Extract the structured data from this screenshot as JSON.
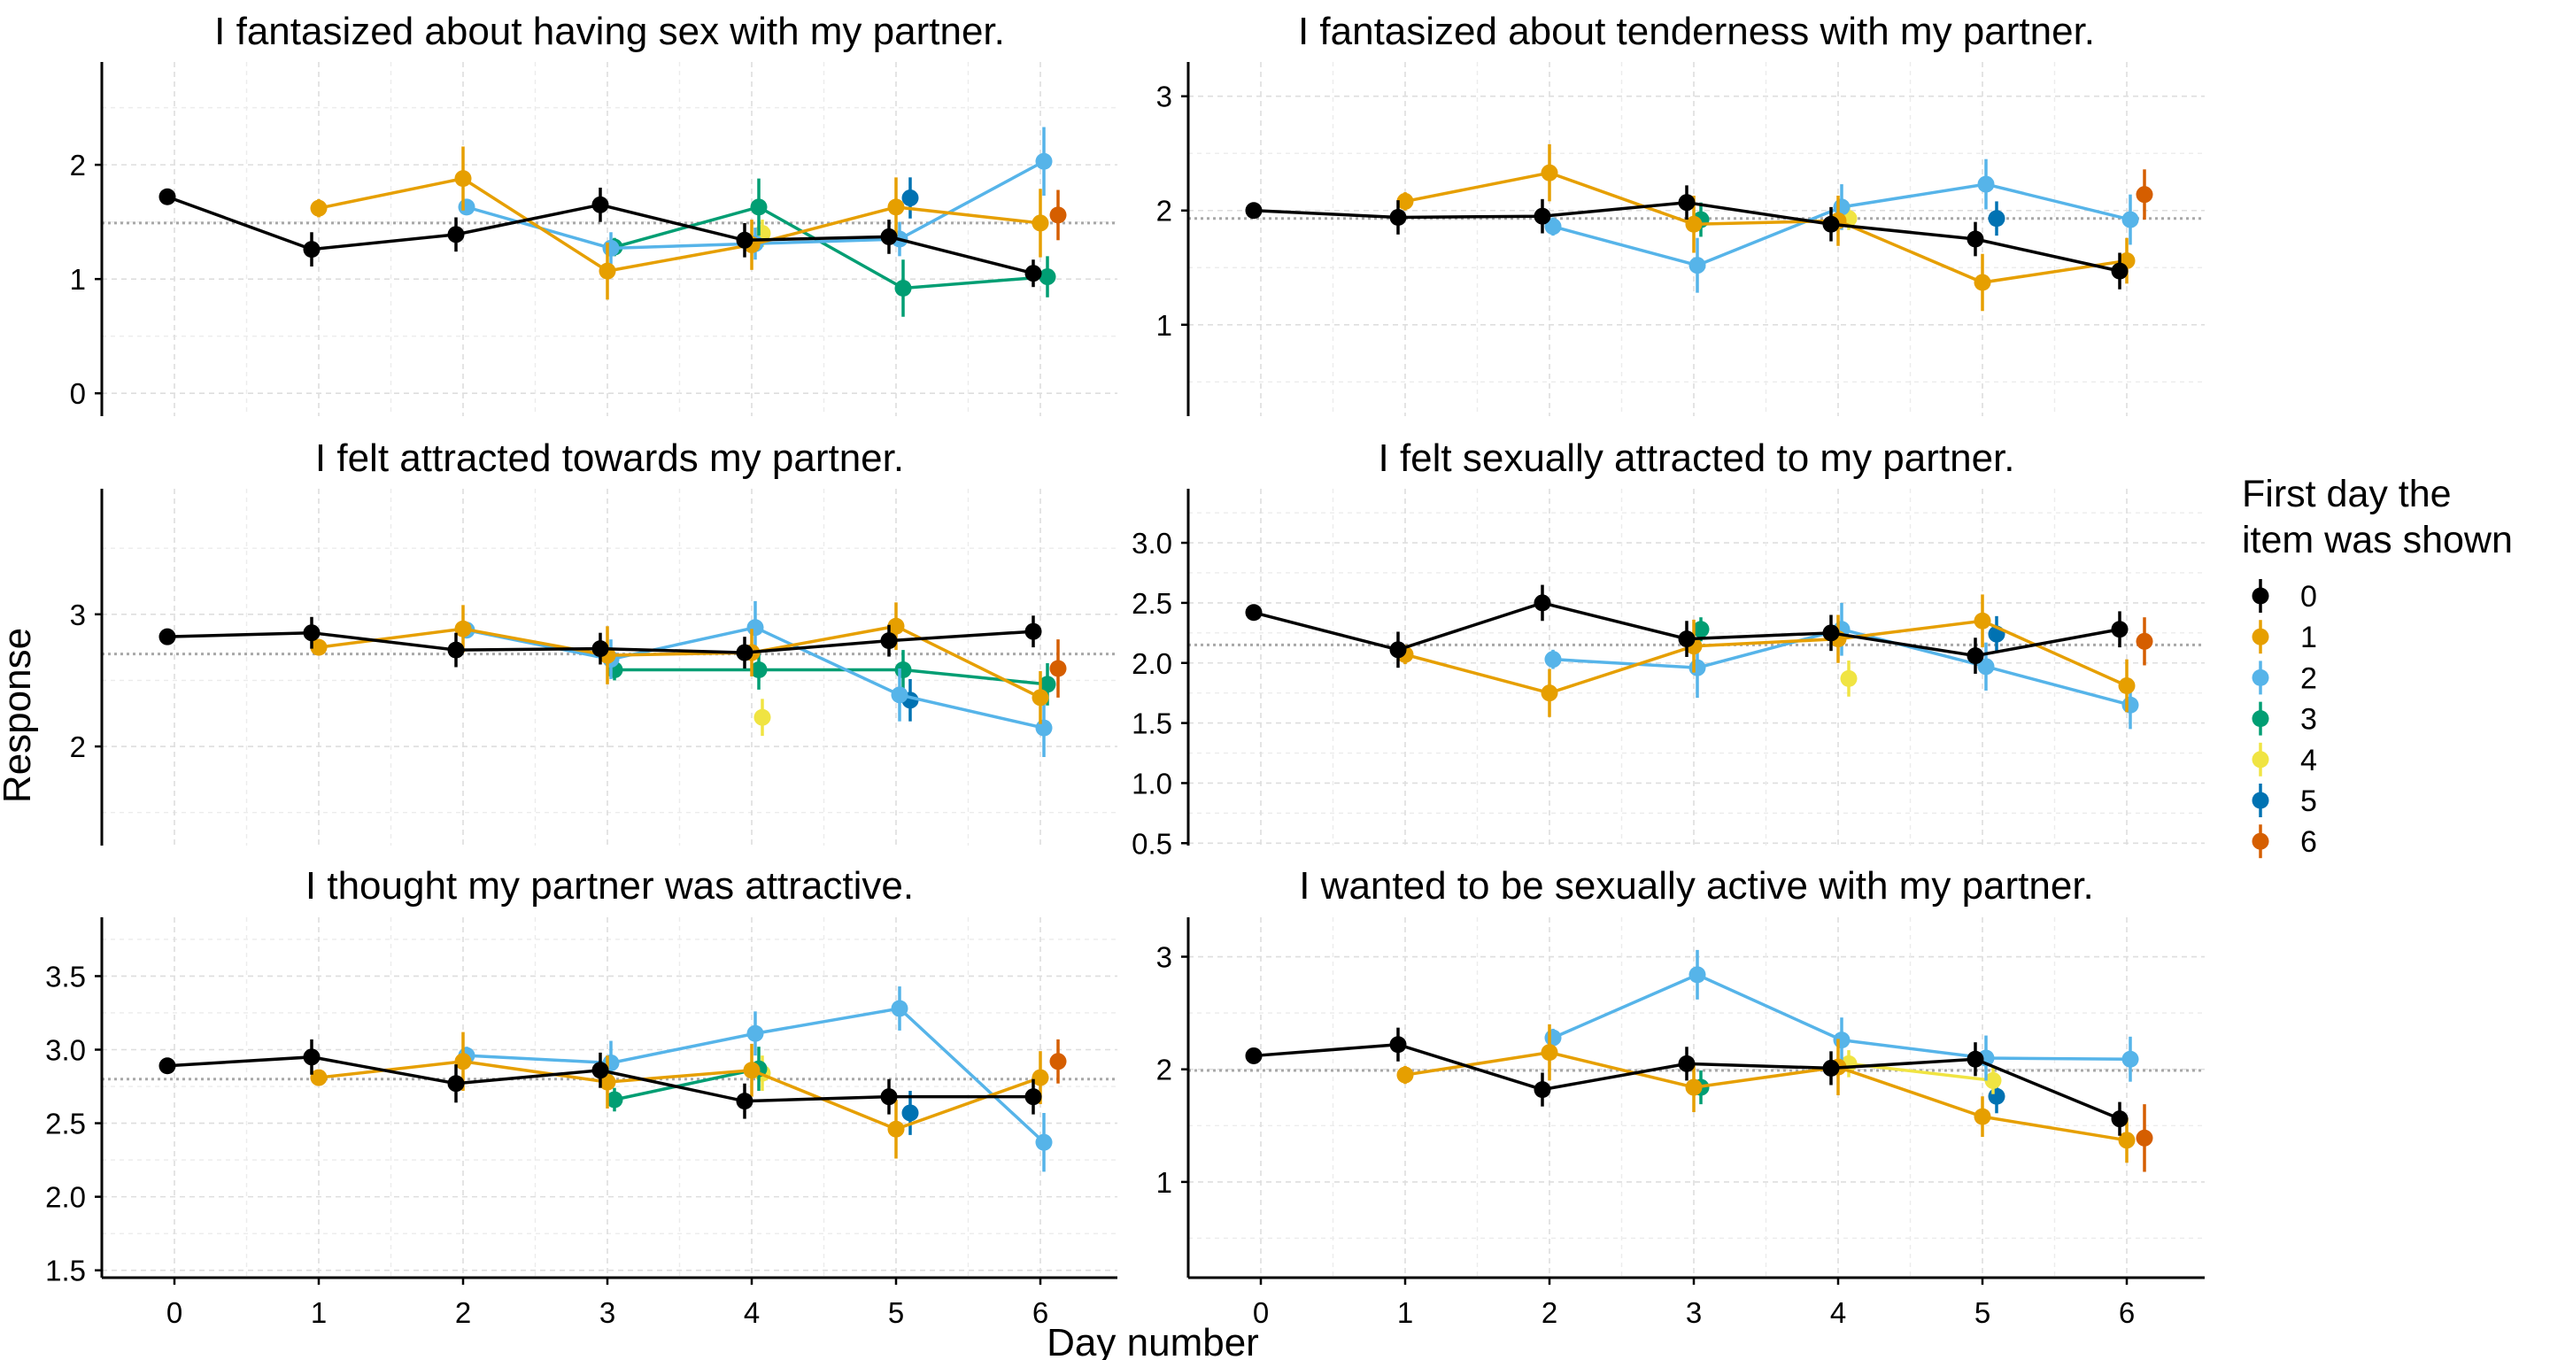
{
  "xlabel": "Day number",
  "ylabel": "Response",
  "legend": {
    "title_line1": "First day the",
    "title_line2": "item was shown",
    "placement": "right",
    "entries": [
      {
        "label": "0",
        "color": "#000000"
      },
      {
        "label": "1",
        "color": "#E69F00"
      },
      {
        "label": "2",
        "color": "#56B4E9"
      },
      {
        "label": "3",
        "color": "#009E73"
      },
      {
        "label": "4",
        "color": "#F0E442"
      },
      {
        "label": "5",
        "color": "#0072B2"
      },
      {
        "label": "6",
        "color": "#D55E00"
      }
    ]
  },
  "x_ticks": [
    0,
    1,
    2,
    3,
    4,
    5,
    6
  ],
  "chart_data": [
    {
      "type": "line",
      "title": "I fantasized about having sex with my partner.",
      "ylim": [
        -0.2,
        2.9
      ],
      "yticks": [
        0,
        1,
        2
      ],
      "yticks_minor": [
        0.5,
        1.5,
        2.5
      ],
      "reference_line": 1.49,
      "series": [
        {
          "name": "0",
          "x": [
            0,
            1,
            2,
            3,
            4,
            5,
            6
          ],
          "y": [
            1.72,
            1.26,
            1.39,
            1.65,
            1.34,
            1.37,
            1.05
          ],
          "err": [
            0.02,
            0.15,
            0.15,
            0.15,
            0.15,
            0.15,
            0.12
          ]
        },
        {
          "name": "1",
          "x": [
            1,
            2,
            3,
            4,
            5,
            6
          ],
          "y": [
            1.62,
            1.88,
            1.07,
            1.3,
            1.63,
            1.49
          ],
          "err": [
            0.08,
            0.28,
            0.25,
            0.22,
            0.26,
            0.3
          ]
        },
        {
          "name": "2",
          "x": [
            2,
            3,
            4,
            5,
            6
          ],
          "y": [
            1.63,
            1.27,
            1.31,
            1.35,
            2.03
          ],
          "err": [
            0.06,
            0.14,
            0.14,
            0.15,
            0.3
          ]
        },
        {
          "name": "3",
          "x": [
            3,
            4,
            5,
            6
          ],
          "y": [
            1.28,
            1.63,
            0.92,
            1.02
          ],
          "err": [
            0.08,
            0.25,
            0.25,
            0.18
          ]
        },
        {
          "name": "4",
          "x": [
            4
          ],
          "y": [
            1.4
          ],
          "err": [
            0.12
          ]
        },
        {
          "name": "5",
          "x": [
            5
          ],
          "y": [
            1.71
          ],
          "err": [
            0.18
          ]
        },
        {
          "name": "6",
          "x": [
            6
          ],
          "y": [
            1.56
          ],
          "err": [
            0.22
          ]
        }
      ]
    },
    {
      "type": "line",
      "title": "I fantasized about tenderness with my partner.",
      "ylim": [
        0.2,
        3.3
      ],
      "yticks": [
        1,
        2,
        3
      ],
      "yticks_minor": [
        0.5,
        1.5,
        2.5
      ],
      "reference_line": 1.93,
      "series": [
        {
          "name": "0",
          "x": [
            0,
            1,
            2,
            3,
            4,
            5,
            6
          ],
          "y": [
            2.0,
            1.94,
            1.95,
            2.07,
            1.88,
            1.75,
            1.47
          ],
          "err": [
            0.02,
            0.15,
            0.15,
            0.15,
            0.15,
            0.15,
            0.16
          ]
        },
        {
          "name": "1",
          "x": [
            1,
            2,
            3,
            4,
            5,
            6
          ],
          "y": [
            2.08,
            2.33,
            1.88,
            1.91,
            1.37,
            1.56
          ],
          "err": [
            0.08,
            0.25,
            0.25,
            0.22,
            0.25,
            0.2
          ]
        },
        {
          "name": "2",
          "x": [
            2,
            3,
            4,
            5,
            6
          ],
          "y": [
            1.86,
            1.52,
            2.03,
            2.23,
            1.92
          ],
          "err": [
            0.08,
            0.24,
            0.2,
            0.22,
            0.22
          ]
        },
        {
          "name": "3",
          "x": [
            3
          ],
          "y": [
            1.92
          ],
          "err": [
            0.15
          ]
        },
        {
          "name": "4",
          "x": [
            4
          ],
          "y": [
            1.93
          ],
          "err": [
            0.1
          ]
        },
        {
          "name": "5",
          "x": [
            5
          ],
          "y": [
            1.93
          ],
          "err": [
            0.15
          ]
        },
        {
          "name": "6",
          "x": [
            6
          ],
          "y": [
            2.14
          ],
          "err": [
            0.22
          ]
        }
      ]
    },
    {
      "type": "line",
      "title": "I felt attracted towards my partner.",
      "ylim": [
        1.25,
        3.95
      ],
      "yticks": [
        2,
        3
      ],
      "yticks_minor": [
        1.5,
        2.5,
        3.5
      ],
      "reference_line": 2.7,
      "series": [
        {
          "name": "0",
          "x": [
            0,
            1,
            2,
            3,
            4,
            5,
            6
          ],
          "y": [
            2.83,
            2.86,
            2.73,
            2.74,
            2.71,
            2.8,
            2.87
          ],
          "err": [
            0.02,
            0.12,
            0.13,
            0.12,
            0.12,
            0.12,
            0.12
          ]
        },
        {
          "name": "1",
          "x": [
            1,
            2,
            3,
            4,
            5,
            6
          ],
          "y": [
            2.75,
            2.89,
            2.69,
            2.71,
            2.91,
            2.37
          ],
          "err": [
            0.05,
            0.18,
            0.22,
            0.18,
            0.18,
            0.2
          ]
        },
        {
          "name": "2",
          "x": [
            2,
            3,
            4,
            5,
            6
          ],
          "y": [
            2.88,
            2.66,
            2.9,
            2.39,
            2.14
          ],
          "err": [
            0.06,
            0.15,
            0.2,
            0.2,
            0.22
          ]
        },
        {
          "name": "3",
          "x": [
            3,
            4,
            5,
            6
          ],
          "y": [
            2.58,
            2.58,
            2.58,
            2.47
          ],
          "err": [
            0.08,
            0.15,
            0.15,
            0.16
          ]
        },
        {
          "name": "4",
          "x": [
            4
          ],
          "y": [
            2.22
          ],
          "err": [
            0.14
          ]
        },
        {
          "name": "5",
          "x": [
            5
          ],
          "y": [
            2.35
          ],
          "err": [
            0.16
          ]
        },
        {
          "name": "6",
          "x": [
            6
          ],
          "y": [
            2.59
          ],
          "err": [
            0.22
          ]
        }
      ]
    },
    {
      "type": "line",
      "title": "I felt sexually attracted to my partner.",
      "ylim": [
        0.48,
        3.45
      ],
      "yticks": [
        0.5,
        1.0,
        1.5,
        2.0,
        2.5,
        3.0
      ],
      "yticks_minor": [
        0.75,
        1.25,
        1.75,
        2.25,
        2.75,
        3.25
      ],
      "tick_format": "fixed1",
      "reference_line": 2.15,
      "series": [
        {
          "name": "0",
          "x": [
            0,
            1,
            2,
            3,
            4,
            5,
            6
          ],
          "y": [
            2.42,
            2.11,
            2.5,
            2.2,
            2.25,
            2.06,
            2.28
          ],
          "err": [
            0.02,
            0.15,
            0.15,
            0.15,
            0.15,
            0.15,
            0.15
          ]
        },
        {
          "name": "1",
          "x": [
            1,
            2,
            3,
            4,
            5,
            6
          ],
          "y": [
            2.07,
            1.75,
            2.14,
            2.2,
            2.35,
            1.81
          ],
          "err": [
            0.08,
            0.2,
            0.22,
            0.2,
            0.22,
            0.22
          ]
        },
        {
          "name": "2",
          "x": [
            2,
            3,
            4,
            5,
            6
          ],
          "y": [
            2.03,
            1.96,
            2.28,
            1.97,
            1.65
          ],
          "err": [
            0.08,
            0.25,
            0.22,
            0.2,
            0.2
          ]
        },
        {
          "name": "3",
          "x": [
            3
          ],
          "y": [
            2.28
          ],
          "err": [
            0.1
          ]
        },
        {
          "name": "4",
          "x": [
            4
          ],
          "y": [
            1.87
          ],
          "err": [
            0.15
          ]
        },
        {
          "name": "5",
          "x": [
            5
          ],
          "y": [
            2.24
          ],
          "err": [
            0.15
          ]
        },
        {
          "name": "6",
          "x": [
            6
          ],
          "y": [
            2.18
          ],
          "err": [
            0.2
          ]
        }
      ]
    },
    {
      "type": "line",
      "title": "I thought my partner was attractive.",
      "ylim": [
        1.45,
        3.9
      ],
      "yticks": [
        1.5,
        2.0,
        2.5,
        3.0,
        3.5
      ],
      "yticks_minor": [
        1.75,
        2.25,
        2.75,
        3.25,
        3.75
      ],
      "tick_format": "fixed1",
      "reference_line": 2.8,
      "series": [
        {
          "name": "0",
          "x": [
            0,
            1,
            2,
            3,
            4,
            5,
            6
          ],
          "y": [
            2.89,
            2.95,
            2.77,
            2.86,
            2.65,
            2.68,
            2.68
          ],
          "err": [
            0.02,
            0.12,
            0.13,
            0.12,
            0.12,
            0.12,
            0.12
          ]
        },
        {
          "name": "1",
          "x": [
            1,
            2,
            3,
            4,
            5,
            6
          ],
          "y": [
            2.81,
            2.92,
            2.78,
            2.86,
            2.46,
            2.81
          ],
          "err": [
            0.05,
            0.2,
            0.18,
            0.18,
            0.2,
            0.18
          ]
        },
        {
          "name": "2",
          "x": [
            2,
            3,
            4,
            5,
            6
          ],
          "y": [
            2.96,
            2.91,
            3.11,
            3.28,
            2.37
          ],
          "err": [
            0.06,
            0.15,
            0.15,
            0.15,
            0.2
          ]
        },
        {
          "name": "3",
          "x": [
            3,
            4
          ],
          "y": [
            2.66,
            2.87
          ],
          "err": [
            0.08,
            0.15
          ]
        },
        {
          "name": "4",
          "x": [
            4
          ],
          "y": [
            2.84
          ],
          "err": [
            0.12
          ]
        },
        {
          "name": "5",
          "x": [
            5
          ],
          "y": [
            2.57
          ],
          "err": [
            0.15
          ]
        },
        {
          "name": "6",
          "x": [
            6
          ],
          "y": [
            2.92
          ],
          "err": [
            0.15
          ]
        }
      ]
    },
    {
      "type": "line",
      "title": "I wanted to be sexually active with my partner.",
      "ylim": [
        0.15,
        3.35
      ],
      "yticks": [
        1,
        2,
        3
      ],
      "yticks_minor": [
        0.5,
        1.5,
        2.5
      ],
      "reference_line": 1.99,
      "series": [
        {
          "name": "0",
          "x": [
            0,
            1,
            2,
            3,
            4,
            5,
            6
          ],
          "y": [
            2.12,
            2.22,
            1.82,
            2.05,
            2.01,
            2.09,
            1.56
          ],
          "err": [
            0.02,
            0.15,
            0.15,
            0.15,
            0.15,
            0.15,
            0.15
          ]
        },
        {
          "name": "1",
          "x": [
            1,
            2,
            3,
            4,
            5,
            6
          ],
          "y": [
            1.95,
            2.15,
            1.84,
            2.02,
            1.58,
            1.37
          ],
          "err": [
            0.08,
            0.25,
            0.22,
            0.25,
            0.18,
            0.2
          ]
        },
        {
          "name": "2",
          "x": [
            2,
            3,
            4,
            5,
            6
          ],
          "y": [
            2.28,
            2.84,
            2.26,
            2.1,
            2.09
          ],
          "err": [
            0.08,
            0.22,
            0.2,
            0.2,
            0.2
          ]
        },
        {
          "name": "3",
          "x": [
            3
          ],
          "y": [
            1.84
          ],
          "err": [
            0.15
          ]
        },
        {
          "name": "4",
          "x": [
            4,
            5
          ],
          "y": [
            2.05,
            1.9
          ],
          "err": [
            0.12,
            0.12
          ]
        },
        {
          "name": "5",
          "x": [
            5
          ],
          "y": [
            1.76
          ],
          "err": [
            0.15
          ]
        },
        {
          "name": "6",
          "x": [
            6
          ],
          "y": [
            1.39
          ],
          "err": [
            0.3
          ]
        }
      ]
    }
  ]
}
